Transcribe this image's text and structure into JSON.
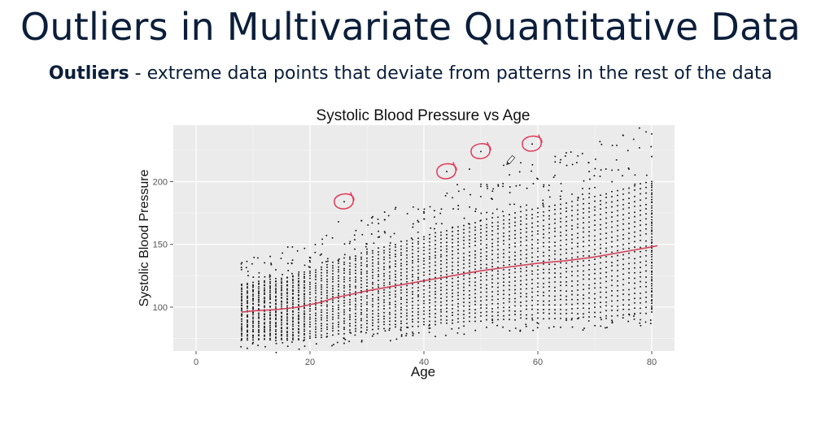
{
  "slide": {
    "title": "Outliers in Multivariate Quantitative Data",
    "definition_term": "Outliers",
    "definition_text": "- extreme data points that deviate from patterns in the rest of the data"
  },
  "chart_data": {
    "type": "scatter",
    "title": "Systolic Blood Pressure vs Age",
    "xlabel": "Age",
    "ylabel": "Systolic Blood Pressure",
    "xlim": [
      -4,
      84
    ],
    "ylim": [
      65,
      245
    ],
    "xticks": [
      0,
      20,
      40,
      60,
      80
    ],
    "yticks": [
      100,
      150,
      200
    ],
    "grid": true,
    "point_color": "#111111",
    "trend_color": "#d2435b",
    "annotation_color": "#e03a5a",
    "trend_line": {
      "x": [
        8,
        10,
        12,
        14,
        16,
        18,
        20,
        22,
        24,
        26,
        28,
        30,
        35,
        40,
        45,
        50,
        55,
        60,
        65,
        70,
        75,
        80,
        81
      ],
      "y": [
        96,
        97,
        97.5,
        98,
        99,
        100,
        102,
        104,
        107,
        109,
        111,
        113,
        117,
        121,
        125,
        129,
        132,
        135,
        137,
        140,
        144,
        148,
        149
      ]
    },
    "outliers": [
      {
        "x": 26,
        "y": 184
      },
      {
        "x": 44,
        "y": 208
      },
      {
        "x": 50,
        "y": 224
      },
      {
        "x": 59,
        "y": 230
      }
    ],
    "extra_points": [
      {
        "x": 25,
        "y": 168
      },
      {
        "x": 31,
        "y": 172
      },
      {
        "x": 40,
        "y": 176
      },
      {
        "x": 48,
        "y": 210
      },
      {
        "x": 54,
        "y": 213
      },
      {
        "x": 57,
        "y": 215
      },
      {
        "x": 60,
        "y": 202
      },
      {
        "x": 63,
        "y": 205
      },
      {
        "x": 69,
        "y": 208
      },
      {
        "x": 76,
        "y": 210
      },
      {
        "x": 80,
        "y": 238
      },
      {
        "x": 80,
        "y": 220
      },
      {
        "x": 52,
        "y": 186
      },
      {
        "x": 61,
        "y": 196
      },
      {
        "x": 66,
        "y": 190
      },
      {
        "x": 26,
        "y": 75
      },
      {
        "x": 38,
        "y": 80
      },
      {
        "x": 51,
        "y": 84
      },
      {
        "x": 64,
        "y": 84
      },
      {
        "x": 72,
        "y": 91
      },
      {
        "x": 78,
        "y": 90
      }
    ]
  }
}
